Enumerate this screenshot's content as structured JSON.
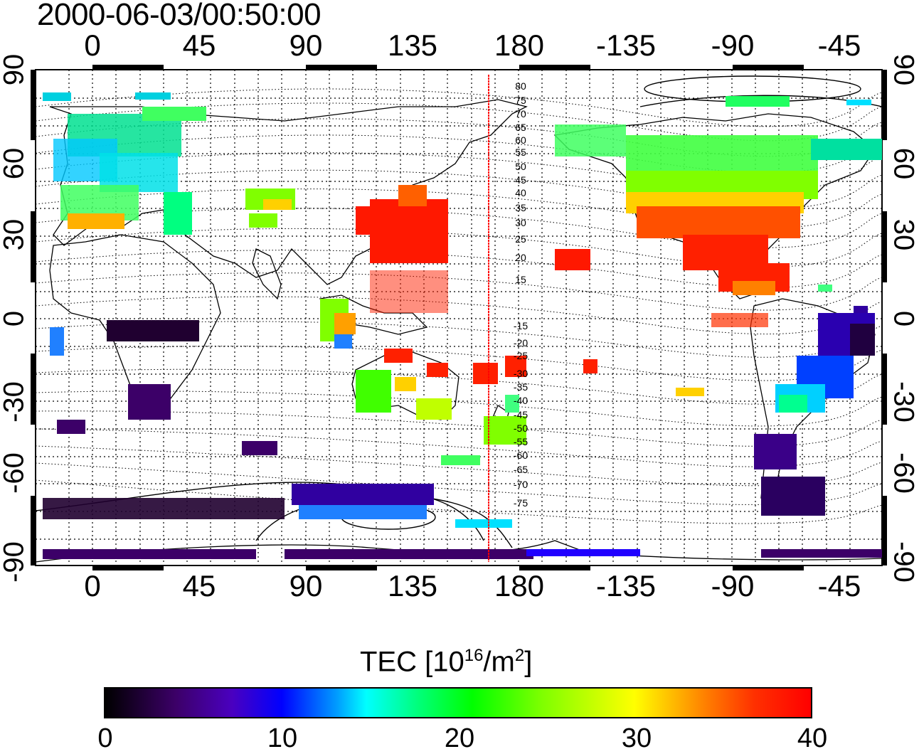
{
  "title": "2000-06-03/00:50:00",
  "map": {
    "lon_ticks": [
      "0",
      "45",
      "90",
      "135",
      "180",
      "-135",
      "-90",
      "-45"
    ],
    "lat_ticks_left": [
      "90",
      "60",
      "30",
      "0",
      "-30",
      "-60",
      "-90"
    ],
    "lat_ticks_right": [
      "90",
      "60",
      "30",
      "0",
      "-30",
      "-60",
      "-90"
    ],
    "contour_labels": [
      "80",
      "75",
      "70",
      "65",
      "60",
      "55",
      "50",
      "45",
      "40",
      "35",
      "30",
      "25",
      "20",
      "15",
      "-15",
      "-20",
      "-25",
      "-30",
      "-35",
      "-40",
      "-45",
      "-50",
      "-55",
      "-60",
      "-65",
      "-70",
      "-75"
    ],
    "terminator_color": "#ff0000",
    "grid": "dotted"
  },
  "colorbar": {
    "title": "TEC  [10",
    "title_sup1": "16",
    "title_mid": "/m",
    "title_sup2": "2",
    "title_end": "]",
    "ticks": [
      "0",
      "10",
      "20",
      "30",
      "40"
    ]
  }
}
